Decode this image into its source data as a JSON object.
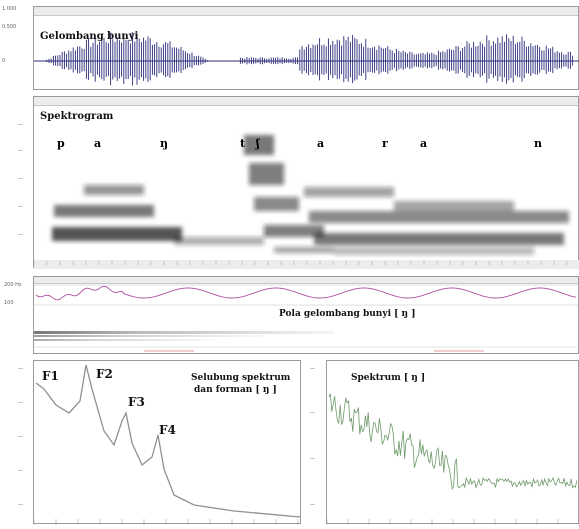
{
  "waveform": {
    "label": "Gelombang bunyi"
  },
  "spectrogram": {
    "label": "Spektrogram",
    "phonemes": [
      "p",
      "a",
      "ŋ",
      "t",
      "ʃ",
      "a",
      "r",
      "a",
      "n"
    ]
  },
  "pattern": {
    "label": "Pola gelombang bunyi [ ŋ ]"
  },
  "envelope": {
    "label_line1": "Selubung spektrum",
    "label_line2": "dan forman [ ŋ ]",
    "formants": [
      "F1",
      "F2",
      "F3",
      "F4"
    ]
  },
  "spectrum": {
    "label": "Spektrum [ ŋ ]"
  },
  "colors": {
    "wave": "#2b2d7a",
    "pitch": "#b050a0",
    "spectrum": "#6e9a6a",
    "envelope": "#909090"
  },
  "icons": [
    "waveform-trace",
    "spectrogram-bands",
    "pitch-contour",
    "envelope-curve",
    "spectrum-trace"
  ]
}
